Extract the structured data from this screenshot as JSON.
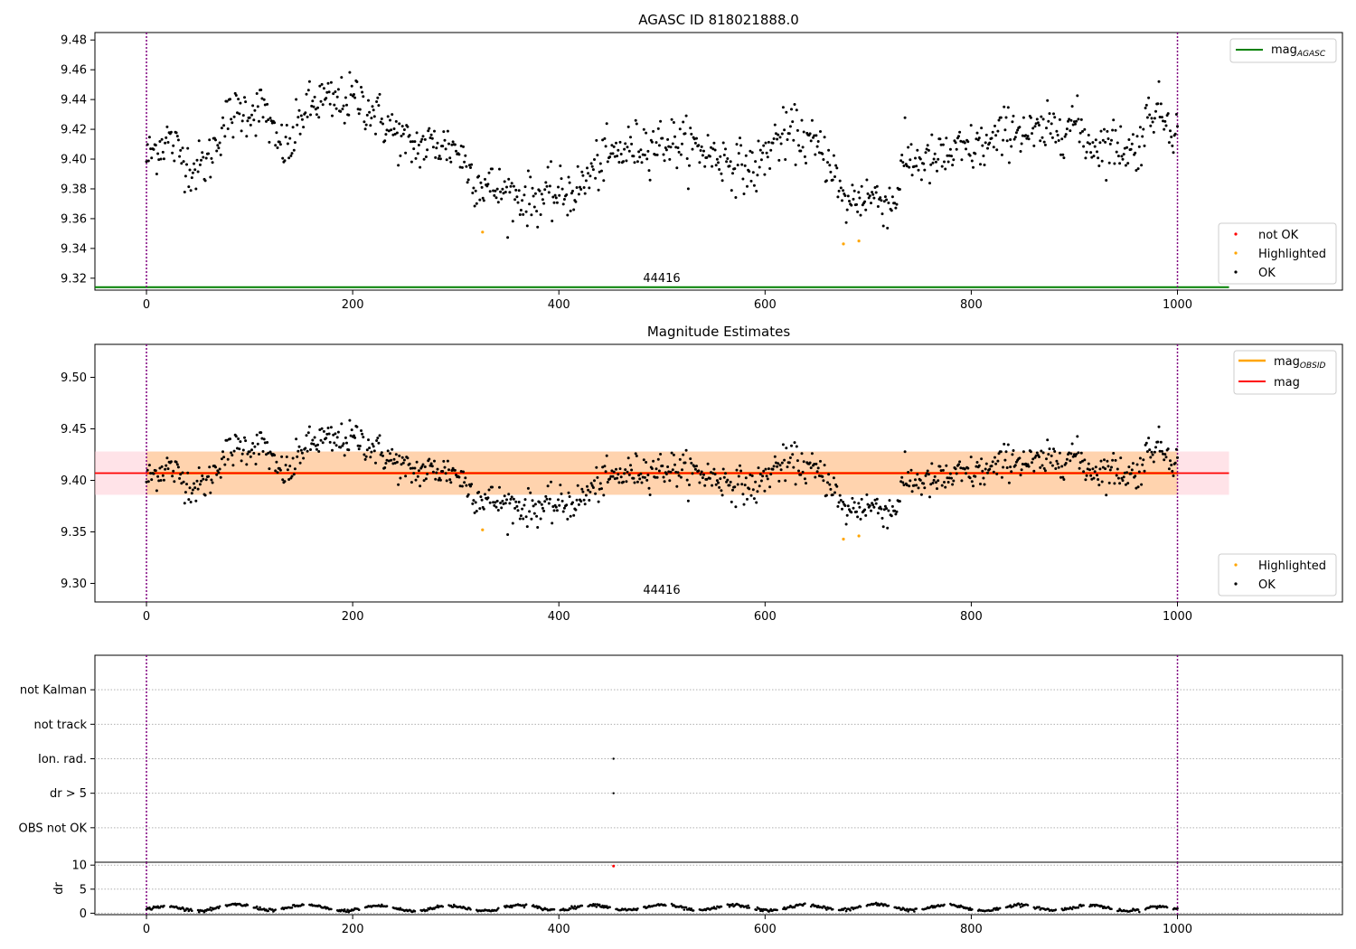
{
  "chart_data": [
    {
      "type": "scatter",
      "title": "AGASC ID 818021888.0",
      "xlim": [
        -50,
        1160
      ],
      "ylim": [
        9.312,
        9.485
      ],
      "xticks": [
        0,
        200,
        400,
        600,
        800,
        1000
      ],
      "yticks": [
        9.32,
        9.34,
        9.36,
        9.38,
        9.4,
        9.42,
        9.44,
        9.46,
        9.48
      ],
      "yticklabels": [
        "9.32",
        "9.34",
        "9.36",
        "9.38",
        "9.40",
        "9.42",
        "9.44",
        "9.46",
        "9.48"
      ],
      "vlines": [
        0,
        1000
      ],
      "obsid_label": "44416",
      "obsid_label_x": 500,
      "mag_agasc": {
        "value": 9.314,
        "x_range": [
          -50,
          1050
        ],
        "color": "#008000"
      },
      "legend_top": {
        "position": "top-right",
        "entries": [
          {
            "label": "mag",
            "sub": "AGASC",
            "color": "#008000"
          }
        ]
      },
      "legend_bottom": {
        "position": "bottom-right",
        "entries": [
          {
            "label": "not OK",
            "color": "#ff0000"
          },
          {
            "label": "Highlighted",
            "color": "#ffa500"
          },
          {
            "label": "OK",
            "color": "#000000"
          }
        ]
      },
      "highlighted": [
        [
          326,
          9.351
        ],
        [
          676,
          9.343
        ],
        [
          691,
          9.345
        ]
      ],
      "not_ok": []
    },
    {
      "type": "scatter",
      "title": "Magnitude Estimates",
      "xlim": [
        -50,
        1160
      ],
      "ylim": [
        9.282,
        9.532
      ],
      "xticks": [
        0,
        200,
        400,
        600,
        800,
        1000
      ],
      "yticks": [
        9.3,
        9.35,
        9.4,
        9.45,
        9.5
      ],
      "yticklabels": [
        "9.30",
        "9.35",
        "9.40",
        "9.45",
        "9.50"
      ],
      "vlines": [
        0,
        1000
      ],
      "obsid_label": "44416",
      "obsid_label_x": 500,
      "mag": {
        "value": 9.407,
        "band": [
          9.386,
          9.428
        ],
        "x_range": [
          -50,
          1050
        ],
        "color": "#ff0000"
      },
      "mag_obsid": {
        "value": 9.407,
        "band": [
          9.386,
          9.428
        ],
        "x_range": [
          0,
          1000
        ],
        "color": "#ffa500"
      },
      "legend_top": {
        "position": "top-right",
        "entries": [
          {
            "label": "mag",
            "sub": "OBSID",
            "color": "#ffa500"
          },
          {
            "label": "mag",
            "sub": "",
            "color": "#ff0000"
          }
        ]
      },
      "legend_bottom": {
        "position": "bottom-right",
        "entries": [
          {
            "label": "Highlighted",
            "color": "#ffa500"
          },
          {
            "label": "OK",
            "color": "#000000"
          }
        ]
      },
      "highlighted": [
        [
          326,
          9.352
        ],
        [
          676,
          9.343
        ],
        [
          691,
          9.346
        ]
      ]
    },
    {
      "type": "scatter",
      "title": "",
      "xlim": [
        -50,
        1160
      ],
      "flag_categories": [
        "not Kalman",
        "not track",
        "Ion. rad.",
        "dr > 5",
        "OBS not OK"
      ],
      "flag_points": [
        {
          "x": 453,
          "category": "Ion. rad."
        },
        {
          "x": 453,
          "category": "dr > 5"
        }
      ],
      "vlines": [
        0,
        1000
      ]
    },
    {
      "type": "scatter",
      "title": "",
      "ylabel": "dr",
      "xlim": [
        -50,
        1160
      ],
      "ylim": [
        -0.3,
        10.6
      ],
      "xticks": [
        0,
        200,
        400,
        600,
        800,
        1000
      ],
      "yticks": [
        0,
        5,
        10
      ],
      "yticklabels": [
        "0",
        "5",
        "10"
      ],
      "vlines": [
        0,
        1000
      ],
      "red_points": [
        [
          453,
          9.8
        ]
      ]
    }
  ],
  "series_model": {
    "x_range": [
      0,
      1000
    ],
    "n_points": 1000,
    "mag_nodes": [
      [
        0,
        9.401
      ],
      [
        20,
        9.414
      ],
      [
        35,
        9.402
      ],
      [
        45,
        9.393
      ],
      [
        60,
        9.398
      ],
      [
        75,
        9.425
      ],
      [
        90,
        9.432
      ],
      [
        115,
        9.434
      ],
      [
        125,
        9.41
      ],
      [
        140,
        9.407
      ],
      [
        150,
        9.43
      ],
      [
        170,
        9.44
      ],
      [
        180,
        9.437
      ],
      [
        205,
        9.441
      ],
      [
        230,
        9.425
      ],
      [
        255,
        9.408
      ],
      [
        280,
        9.41
      ],
      [
        300,
        9.408
      ],
      [
        320,
        9.385
      ],
      [
        345,
        9.378
      ],
      [
        370,
        9.373
      ],
      [
        400,
        9.376
      ],
      [
        420,
        9.38
      ],
      [
        440,
        9.398
      ],
      [
        460,
        9.405
      ],
      [
        480,
        9.41
      ],
      [
        510,
        9.412
      ],
      [
        540,
        9.406
      ],
      [
        570,
        9.397
      ],
      [
        590,
        9.392
      ],
      [
        610,
        9.413
      ],
      [
        630,
        9.418
      ],
      [
        650,
        9.407
      ],
      [
        665,
        9.398
      ],
      [
        675,
        9.37
      ],
      [
        700,
        9.376
      ],
      [
        725,
        9.37
      ],
      [
        735,
        9.4
      ],
      [
        760,
        9.398
      ],
      [
        790,
        9.405
      ],
      [
        820,
        9.41
      ],
      [
        840,
        9.422
      ],
      [
        860,
        9.415
      ],
      [
        880,
        9.42
      ],
      [
        900,
        9.425
      ],
      [
        915,
        9.41
      ],
      [
        940,
        9.41
      ],
      [
        960,
        9.405
      ],
      [
        975,
        9.435
      ],
      [
        990,
        9.428
      ],
      [
        1000,
        9.418
      ]
    ],
    "dr_nodes": [
      [
        0,
        0.8
      ],
      [
        100,
        1.3
      ],
      [
        200,
        1.0
      ],
      [
        300,
        1.0
      ],
      [
        400,
        1.2
      ],
      [
        500,
        1.2
      ],
      [
        600,
        1.1
      ],
      [
        700,
        1.3
      ],
      [
        800,
        1.1
      ],
      [
        900,
        1.2
      ],
      [
        1000,
        0.8
      ]
    ]
  }
}
